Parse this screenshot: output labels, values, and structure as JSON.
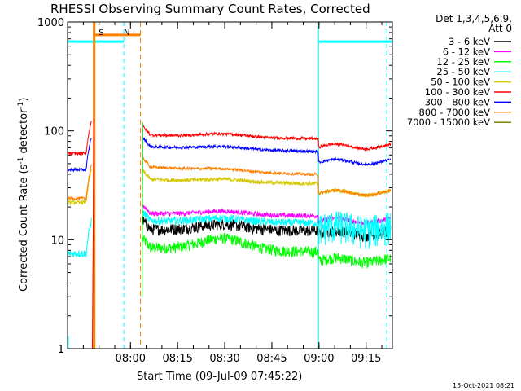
{
  "chart_data": {
    "type": "line",
    "title": "RHESSI Observing Summary Count Rates, Corrected",
    "xlabel": "Start Time (09-Jul-09 07:45:22)",
    "ylabel": "Corrected Count Rate (s",
    "ylabel_sup1": "-1",
    "ylabel_mid": " detector",
    "ylabel_sup2": "-1",
    "ylabel_end": ")",
    "y_scale": "log",
    "ylim": [
      1,
      1000
    ],
    "xlim_minutes": [
      -5.4,
      98
    ],
    "x_tick_labels": [
      {
        "label": "08:00",
        "min": 14.63
      },
      {
        "label": "08:15",
        "min": 29.63
      },
      {
        "label": "08:30",
        "min": 44.63
      },
      {
        "label": "08:45",
        "min": 59.63
      },
      {
        "label": "09:00",
        "min": 74.63
      },
      {
        "label": "09:15",
        "min": 89.63
      }
    ],
    "y_tick_labels": [
      {
        "label": "1",
        "value": 1
      },
      {
        "label": "10",
        "value": 10
      },
      {
        "label": "100",
        "value": 100
      },
      {
        "label": "1000",
        "value": 1000
      }
    ],
    "legend_header1": "Det 1,3,4,5,6,9,",
    "legend_header2": "Att 0",
    "series": [
      {
        "name": "3 - 6 keV",
        "color": "#000000",
        "pre": 0,
        "base": 12.5,
        "bump": 1.6,
        "late": 11.5,
        "noise": 0.12
      },
      {
        "name": "6 - 12 keV",
        "color": "#ff00ff",
        "pre": 0,
        "base": 17.5,
        "bump": 1.3,
        "late": 15,
        "noise": 0.05
      },
      {
        "name": "12 - 25 keV",
        "color": "#00ff00",
        "pre": 0,
        "base": 8.5,
        "bump": 2.2,
        "late": 6.5,
        "noise": 0.12
      },
      {
        "name": "25 - 50 keV",
        "color": "#00ffff",
        "pre": 7.5,
        "base": 15,
        "bump": 1.2,
        "late": 13,
        "noise": 0.08
      },
      {
        "name": "50 - 100 keV",
        "color": "#d4c800",
        "pre": 22,
        "base": 36,
        "bump": 1.8,
        "late": 27,
        "noise": 0.04
      },
      {
        "name": "100 - 300 keV",
        "color": "#ff0000",
        "pre": 62,
        "base": 92,
        "bump": 6,
        "late": 72,
        "noise": 0.03
      },
      {
        "name": "300 - 800 keV",
        "color": "#0000ff",
        "pre": 44,
        "base": 72,
        "bump": 4,
        "late": 52,
        "noise": 0.03
      },
      {
        "name": "800 - 7000 keV",
        "color": "#ff7f00",
        "pre": 24,
        "base": 47,
        "bump": 2,
        "late": 27,
        "noise": 0.03
      },
      {
        "name": "7000 - 15000 keV",
        "color": "#7f7f00",
        "pre": 0,
        "base": 0,
        "bump": 0,
        "late": 0,
        "noise": 0
      }
    ],
    "annotations": [
      {
        "text": "S",
        "color": "#ff7f00",
        "at_min": 4.5
      },
      {
        "text": "N",
        "color": "#00ffff",
        "at_min": 12.5
      }
    ],
    "footer_timestamp": "15-Oct-2021 08:21"
  }
}
